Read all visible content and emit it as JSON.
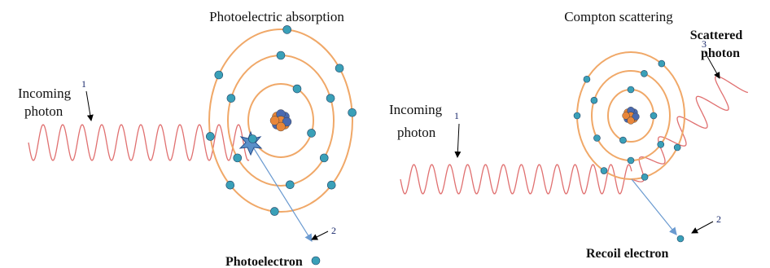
{
  "panels": [
    {
      "title": "Photoelectric absorption",
      "incoming_label": [
        "Incoming",
        "photon"
      ],
      "step_1": "1",
      "step_2": "2",
      "electron_label": "Photoelectron"
    },
    {
      "title": "Compton scattering",
      "incoming_label": [
        "Incoming",
        "photon"
      ],
      "step_1": "1",
      "step_2": "2",
      "step_3": "3",
      "scattered_label": [
        "Scattered",
        "photon"
      ],
      "electron_label": "Recoil electron"
    }
  ]
}
